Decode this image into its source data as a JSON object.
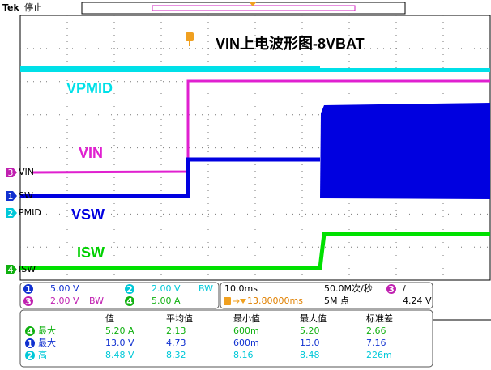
{
  "header": {
    "brand": "Tek",
    "status": "停止"
  },
  "title": "VIN上电波形图-8VBAT",
  "trace_labels": [
    "VPMID",
    "VIN",
    "VSW",
    "ISW"
  ],
  "channel_markers": [
    {
      "number": "3",
      "label": "VIN"
    },
    {
      "number": "1",
      "label": "SW"
    },
    {
      "number": "2",
      "label": "PMID"
    },
    {
      "number": "4",
      "label": "ISW"
    }
  ],
  "channels": [
    {
      "number": "1",
      "scale": "5.00 V"
    },
    {
      "number": "2",
      "scale": "2.00 V",
      "bandwidth": "BW"
    },
    {
      "number": "3",
      "scale": "2.00 V",
      "bandwidth": "BW"
    },
    {
      "number": "4",
      "scale": "5.00 A"
    }
  ],
  "timebase": {
    "horizontal": "10.0ms",
    "sample_rate": "50.0M次/秒",
    "trigger_channel": "3",
    "trigger_slope": "/",
    "trigger_position": "13.80000ms",
    "record_length": "5M 点",
    "trigger_level": "4.24 V"
  },
  "measurements": {
    "headers": [
      "值",
      "平均值",
      "最小值",
      "最大值",
      "标准差"
    ],
    "rows": [
      {
        "channel": "4",
        "name": "最大",
        "values": [
          "5.20 A",
          "2.13",
          "600m",
          "5.20",
          "2.66"
        ]
      },
      {
        "channel": "1",
        "name": "最大",
        "values": [
          "13.0 V",
          "4.73",
          "600m",
          "13.0",
          "7.16"
        ]
      },
      {
        "channel": "2",
        "name": "高",
        "values": [
          "8.48 V",
          "8.32",
          "8.16",
          "8.48",
          "226m"
        ]
      }
    ]
  }
}
